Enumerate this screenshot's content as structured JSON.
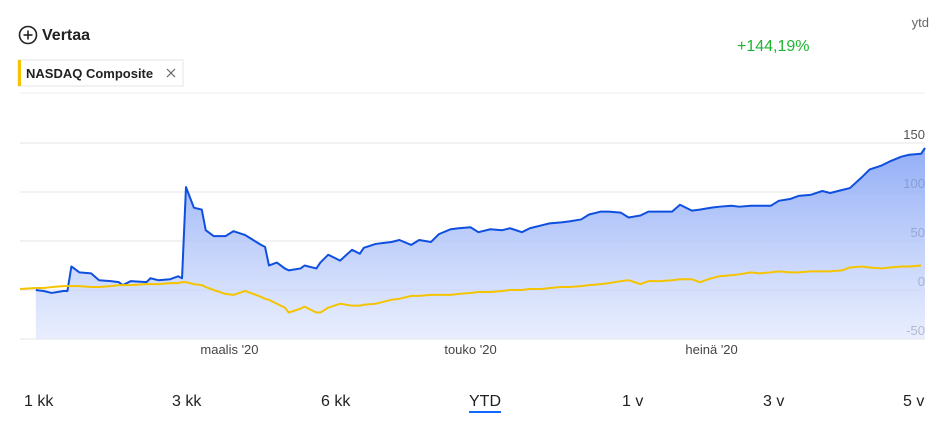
{
  "ui": {
    "compare": "Vertaa",
    "period": "ytd",
    "change": "+144,19%",
    "ranges": [
      "1 kk",
      "3 kk",
      "6 kk",
      "YTD",
      "1 v",
      "3 v",
      "5 v"
    ],
    "selected_range": 3
  },
  "chart_data": {
    "type": "line",
    "x": [
      7,
      11,
      13,
      15,
      18,
      19,
      20,
      22,
      25,
      27,
      30,
      32,
      33,
      35,
      39,
      40,
      42,
      45,
      47,
      48,
      49,
      51,
      53,
      54,
      56,
      59,
      61,
      64,
      66,
      68,
      69,
      70,
      72,
      74,
      75,
      78,
      79,
      82,
      83,
      85,
      88,
      91,
      93,
      94,
      97,
      101,
      103,
      106,
      108,
      111,
      113,
      116,
      118,
      121,
      123,
      126,
      129,
      131,
      134,
      136,
      139,
      141,
      144,
      146,
      149,
      151,
      154,
      156,
      159,
      161,
      164,
      166,
      169,
      172,
      174,
      177,
      179,
      182,
      184,
      187,
      189,
      192,
      194,
      197,
      199,
      202,
      204,
      207,
      210,
      212,
      215,
      217,
      220,
      222,
      225,
      227,
      230,
      232,
      235,
      236
    ],
    "series": [
      {
        "color": "#0f4fe0",
        "fill": true,
        "values": [
          null,
          0,
          -1,
          -3,
          -1,
          -1,
          24,
          18,
          17,
          10,
          9,
          8,
          5,
          9,
          8,
          12,
          10,
          11,
          14,
          12,
          105,
          84,
          82,
          61,
          55,
          55,
          60,
          56,
          51,
          46,
          44,
          25,
          28,
          22,
          20,
          22,
          25,
          22,
          28,
          36,
          30,
          41,
          37,
          43,
          47,
          49,
          51,
          46,
          51,
          49,
          57,
          62,
          63,
          64,
          59,
          62,
          61,
          63,
          59,
          63,
          66,
          68,
          69,
          70,
          72,
          77,
          80,
          80,
          79,
          74,
          76,
          80,
          80,
          80,
          87,
          81,
          82,
          84,
          85,
          86,
          85,
          86,
          86,
          86,
          91,
          93,
          96,
          97,
          101,
          99,
          102,
          104,
          115,
          123,
          127,
          131,
          136,
          138,
          139,
          145
        ]
      },
      {
        "name": "NASDAQ Composite",
        "color": "#f5c400",
        "fill": false,
        "values": [
          1,
          2,
          2,
          3,
          4,
          4,
          4,
          4,
          3,
          3,
          4,
          5,
          5,
          5,
          6,
          6,
          6,
          7,
          7,
          8,
          8,
          6,
          5,
          3,
          0,
          -4,
          -5,
          -1,
          -4,
          -7,
          -9,
          -10,
          -14,
          -18,
          -23,
          -19,
          -17,
          -23,
          -23,
          -18,
          -14,
          -16,
          -16,
          -15,
          -14,
          -10,
          -9,
          -6,
          -6,
          -5,
          -5,
          -5,
          -4,
          -3,
          -2,
          -2,
          -1,
          0,
          0,
          1,
          1,
          2,
          3,
          3,
          4,
          5,
          6,
          7,
          9,
          10,
          6,
          9,
          9,
          10,
          11,
          11,
          8,
          12,
          14,
          15,
          16,
          18,
          17,
          18,
          19,
          18,
          18,
          19,
          19,
          19,
          20,
          23,
          24,
          23,
          22,
          23,
          24,
          24,
          25,
          null
        ]
      }
    ],
    "xlim": [
      7,
      236
    ],
    "xticks": [
      {
        "value": 60,
        "label": "maalis '20"
      },
      {
        "value": 121,
        "label": "touko '20"
      },
      {
        "value": 182,
        "label": "heinä '20"
      }
    ],
    "ylim": [
      -50,
      201
    ],
    "yticks": [
      -50,
      0,
      50,
      100,
      150
    ],
    "grid": true
  }
}
